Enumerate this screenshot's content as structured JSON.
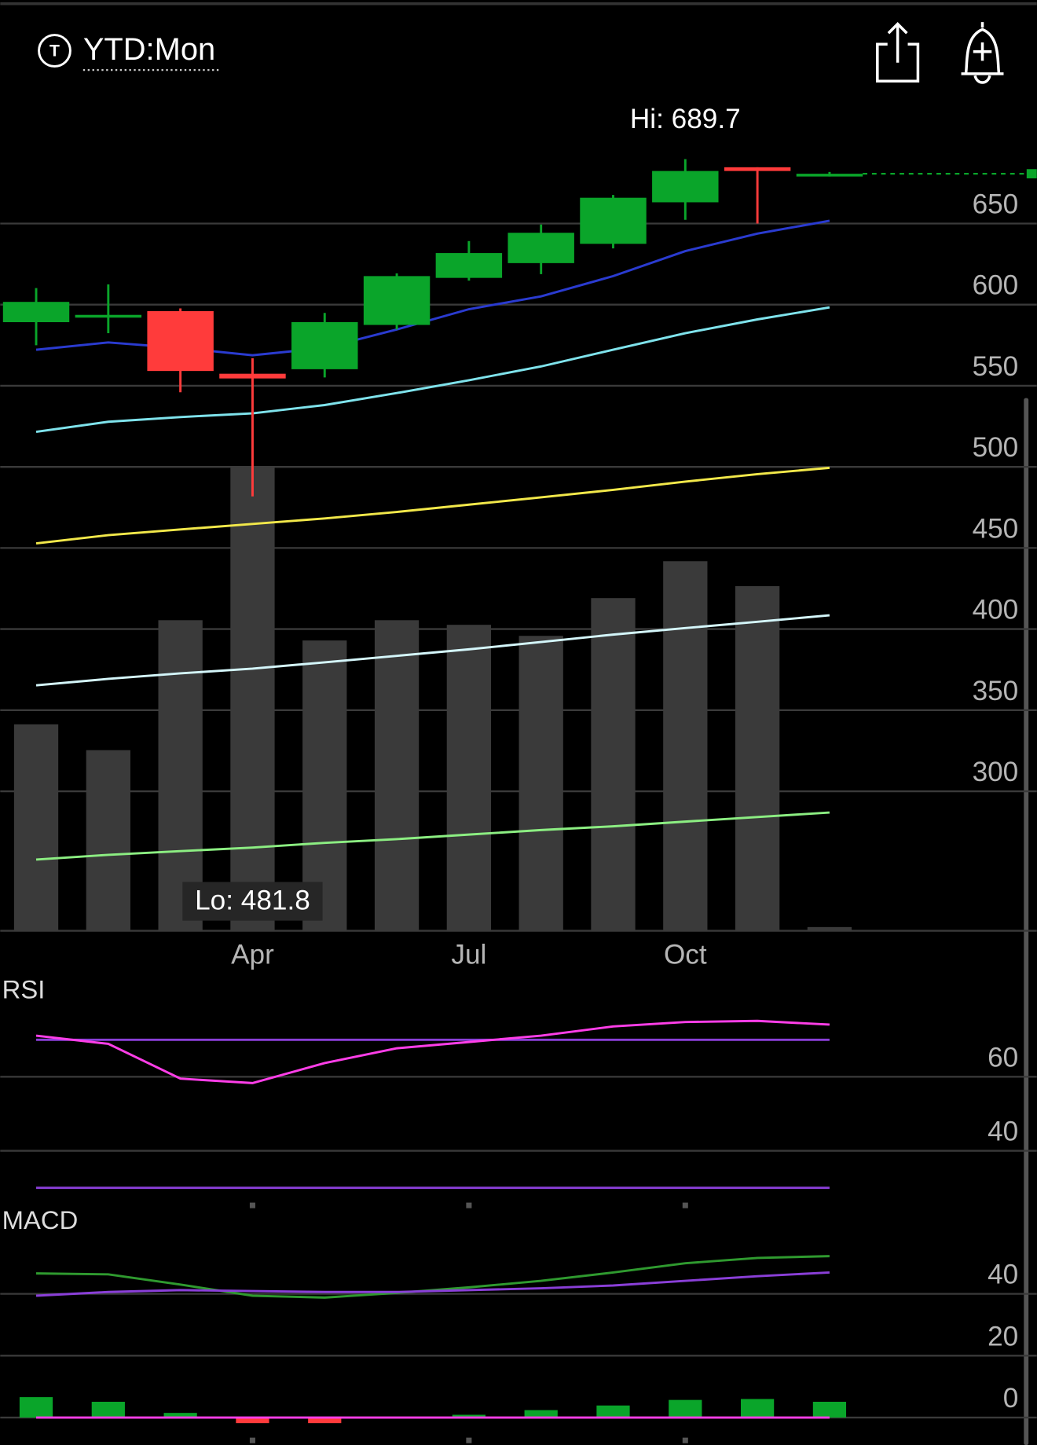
{
  "header": {
    "title": "YTD:Mon"
  },
  "chart_data": [
    {
      "type": "candlestick",
      "categories": [
        null,
        null,
        null,
        "Apr",
        null,
        null,
        "Jul",
        null,
        null,
        "Oct",
        null,
        null
      ],
      "open": [
        589.2,
        592.6,
        596.0,
        557.4,
        560.2,
        587.5,
        616.5,
        625.6,
        637.5,
        663.1,
        684.7,
        679.0
      ],
      "high": [
        610.2,
        612.5,
        597.7,
        567.0,
        594.9,
        619.3,
        639.2,
        649.4,
        667.6,
        689.7,
        684.7,
        681.8
      ],
      "low": [
        575.0,
        582.4,
        546.0,
        481.8,
        555.1,
        584.7,
        614.8,
        618.8,
        634.7,
        652.3,
        650.0,
        679.0
      ],
      "close": [
        601.7,
        593.7,
        559.1,
        554.5,
        589.2,
        617.6,
        631.8,
        644.3,
        665.9,
        682.4,
        682.4,
        680.7
      ],
      "up_color": "#0aa52a",
      "down_color": "#ff3b3b",
      "hi_label": "Hi: 689.7",
      "lo_label": "Lo: 481.8",
      "series": [
        {
          "color": "#2a3bd0",
          "values": [
            572.2,
            576.7,
            573.3,
            568.8,
            573.3,
            584.7,
            597.2,
            605.1,
            617.6,
            633.0,
            643.8,
            651.7
          ]
        },
        {
          "color": "#7fe3ec",
          "values": [
            521.6,
            527.8,
            530.7,
            533.0,
            538.1,
            545.5,
            553.4,
            561.9,
            572.2,
            582.4,
            590.9,
            598.3
          ]
        },
        {
          "color": "#f2e84a",
          "values": [
            452.8,
            457.9,
            461.4,
            464.8,
            468.2,
            472.2,
            476.7,
            481.2,
            485.8,
            490.9,
            495.5,
            499.4
          ]
        },
        {
          "color": "#d4f6fa",
          "values": [
            365.3,
            369.3,
            372.7,
            375.6,
            379.5,
            383.5,
            387.5,
            392.0,
            396.6,
            400.6,
            404.5,
            408.5
          ]
        },
        {
          "color": "#8cee82",
          "values": [
            257.9,
            260.8,
            263.1,
            265.3,
            268.2,
            270.5,
            273.3,
            276.1,
            278.4,
            281.3,
            284.1,
            286.9
          ]
        }
      ],
      "volume": {
        "color": "#3a3a3a",
        "values": [
          224,
          196,
          337,
          504,
          315,
          337,
          332,
          320,
          361,
          401,
          374,
          4
        ]
      },
      "ylim": [
        214,
        731
      ],
      "yticks": [
        300,
        350,
        400,
        450,
        500,
        550,
        600,
        650
      ],
      "grid": true
    },
    {
      "type": "line",
      "title": "RSI",
      "series": [
        {
          "color": "#ff3ee8",
          "values": [
            71.1,
            68.9,
            59.5,
            58.3,
            63.7,
            67.7,
            69.4,
            71.1,
            73.6,
            74.8,
            75.1,
            74.1
          ]
        }
      ],
      "levels": [
        70,
        30
      ],
      "level_color": "#8a3fd8",
      "ylim": [
        26,
        87
      ],
      "yticks": [
        40,
        60
      ],
      "grid": true
    },
    {
      "type": "macd",
      "title": "MACD",
      "series": [
        {
          "color": "#2f9a2f",
          "values": [
            46.6,
            46.3,
            43.0,
            39.4,
            38.8,
            40.3,
            42.1,
            44.2,
            46.9,
            49.9,
            51.6,
            52.2
          ]
        },
        {
          "color": "#8a3fd8",
          "values": [
            39.4,
            40.6,
            41.2,
            40.9,
            40.6,
            40.6,
            41.2,
            41.8,
            42.7,
            44.2,
            45.7,
            46.9
          ]
        }
      ],
      "histogram": {
        "up_color": "#0aa52a",
        "down_color": "#ff3b3b",
        "values": [
          6.6,
          5.1,
          1.5,
          -1.8,
          -1.8,
          0.2,
          0.9,
          2.4,
          3.9,
          5.7,
          6.0,
          5.1
        ]
      },
      "zero_color": "#ff3ee8",
      "ylim": [
        -5,
        68
      ],
      "yticks": [
        0,
        20,
        40
      ],
      "grid": true
    }
  ]
}
